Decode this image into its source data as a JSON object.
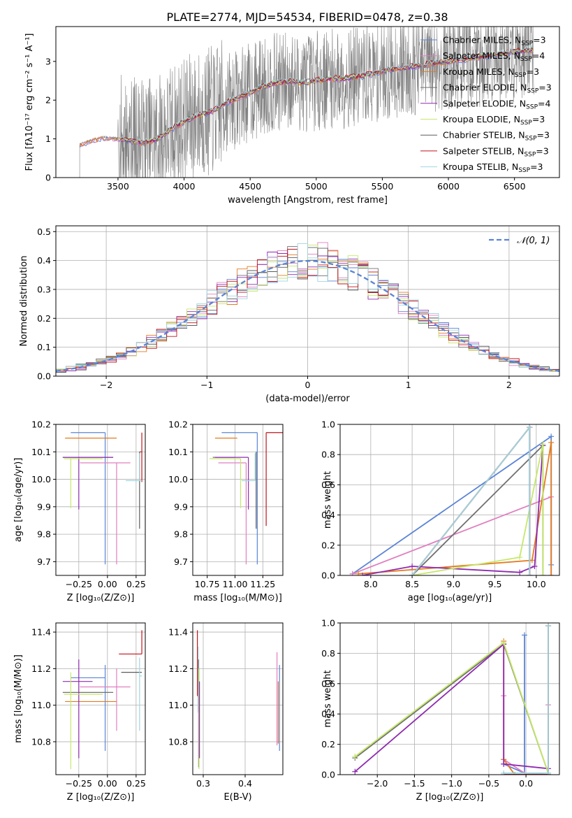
{
  "figure_title": "PLATE=2774, MJD=54534, FIBERID=0478, z=0.38",
  "colors": {
    "Chabrier MILES": "#5b84d6",
    "Salpeter MILES": "#e07fbf",
    "Kroupa MILES": "#e47b21",
    "Chabrier ELODIE": "#707070",
    "Salpeter ELODIE": "#8f2bb0",
    "Kroupa ELODIE": "#c5e86a",
    "Chabrier STELIB": "#5c5c5c",
    "Salpeter STELIB": "#c0151c",
    "Kroupa STELIB": "#9fd6e0",
    "normal": "#5b84d6"
  },
  "legend_spectrum": [
    {
      "label": "Chabrier MILES, N",
      "sub": "SSP",
      "suffix": "=3",
      "key": "Chabrier MILES"
    },
    {
      "label": "Salpeter MILES, N",
      "sub": "SSP",
      "suffix": "=4",
      "key": "Salpeter MILES"
    },
    {
      "label": "Kroupa MILES, N",
      "sub": "SSP",
      "suffix": "=3",
      "key": "Kroupa MILES"
    },
    {
      "label": "Chabrier ELODIE, N",
      "sub": "SSP",
      "suffix": "=3",
      "key": "Chabrier ELODIE"
    },
    {
      "label": "Salpeter ELODIE, N",
      "sub": "SSP",
      "suffix": "=4",
      "key": "Salpeter ELODIE"
    },
    {
      "label": "Kroupa ELODIE, N",
      "sub": "SSP",
      "suffix": "=3",
      "key": "Kroupa ELODIE"
    },
    {
      "label": "Chabrier STELIB, N",
      "sub": "SSP",
      "suffix": "=3",
      "key": "Chabrier STELIB"
    },
    {
      "label": "Salpeter STELIB, N",
      "sub": "SSP",
      "suffix": "=3",
      "key": "Salpeter STELIB"
    },
    {
      "label": "Kroupa STELIB, N",
      "sub": "SSP",
      "suffix": "=3",
      "key": "Kroupa STELIB"
    }
  ],
  "legend_hist": "𝒩(0, 1)",
  "chart_data": [
    {
      "id": "spectrum",
      "type": "line",
      "xlabel": "wavelength [Angstrom, rest frame]",
      "ylabel": "Flux [fλ10⁻¹⁷ erg cm⁻² s⁻¹ A⁻¹]",
      "xlim": [
        3030,
        6840
      ],
      "ylim": [
        0,
        3.9
      ],
      "xticks": [
        3500,
        4000,
        4500,
        5000,
        5500,
        6000,
        6500
      ],
      "yticks": [
        0,
        1,
        2,
        3
      ],
      "data_x": [
        3210,
        3280,
        3400,
        3500,
        3600,
        3700,
        3800,
        3900,
        4000,
        4100,
        4200,
        4300,
        4400,
        4500,
        4600,
        4700,
        4800,
        4900,
        5000,
        5100,
        5200,
        5300,
        5400,
        5500,
        5600,
        5700,
        5800,
        5900,
        6000,
        6100,
        6200,
        6300,
        6400,
        6500,
        6600,
        6650
      ],
      "data_y": [
        0.85,
        0.95,
        1.05,
        1.0,
        0.95,
        0.9,
        1.0,
        1.25,
        1.45,
        1.6,
        1.7,
        1.9,
        2.05,
        2.2,
        2.35,
        2.45,
        2.5,
        2.45,
        2.5,
        2.55,
        2.55,
        2.6,
        2.65,
        2.75,
        2.8,
        2.85,
        2.9,
        2.95,
        3.0,
        3.05,
        3.1,
        3.15,
        3.2,
        3.25,
        3.3,
        3.3
      ],
      "model_start_x": 3520,
      "noise_range": [
        3500,
        6650
      ]
    },
    {
      "id": "residual_hist",
      "type": "line",
      "xlabel": "(data-model)/error",
      "ylabel": "Normed distribution",
      "xlim": [
        -2.5,
        2.5
      ],
      "ylim": [
        0,
        0.52
      ],
      "xticks": [
        -2,
        -1,
        0,
        1,
        2
      ],
      "yticks": [
        0.0,
        0.1,
        0.2,
        0.3,
        0.4,
        0.5
      ],
      "bin_width": 0.1,
      "normal_mean": 0,
      "normal_sigma": 1
    },
    {
      "id": "age_vs_Z",
      "type": "scatter",
      "xlabel": "Z [log₁₀(Z/Z⊙)]",
      "ylabel": "age  [log₁₀(age/yr)]",
      "xlim": [
        -0.45,
        0.33
      ],
      "ylim": [
        9.65,
        10.2
      ],
      "xticks": [
        -0.25,
        0.0,
        0.25
      ],
      "yticks": [
        9.7,
        9.8,
        9.9,
        10.0,
        10.1,
        10.2
      ],
      "points": [
        {
          "key": "Chabrier MILES",
          "x": -0.02,
          "y": 10.17,
          "xerr": [
            0.3,
            0.0
          ],
          "yerr": [
            0.48,
            0.0
          ]
        },
        {
          "key": "Salpeter MILES",
          "x": 0.08,
          "y": 10.06,
          "xerr": [
            0.32,
            0.12
          ],
          "yerr": [
            0.37,
            0.0
          ]
        },
        {
          "key": "Kroupa MILES",
          "x": -0.12,
          "y": 10.15,
          "xerr": [
            0.25,
            0.2
          ],
          "yerr": [
            0.0,
            0.0
          ]
        },
        {
          "key": "Chabrier ELODIE",
          "x": -0.25,
          "y": 10.08,
          "xerr": [
            0.14,
            0.3
          ],
          "yerr": [
            0.0,
            0.0
          ]
        },
        {
          "key": "Salpeter ELODIE",
          "x": -0.25,
          "y": 10.08,
          "xerr": [
            0.14,
            0.3
          ],
          "yerr": [
            0.19,
            0.0
          ]
        },
        {
          "key": "Kroupa ELODIE",
          "x": -0.32,
          "y": 10.075,
          "xerr": [
            0.06,
            0.28
          ],
          "yerr": [
            0.18,
            0.0
          ]
        },
        {
          "key": "Chabrier STELIB",
          "x": 0.28,
          "y": 10.1,
          "xerr": [
            0.0,
            0.02
          ],
          "yerr": [
            0.28,
            0.0
          ]
        },
        {
          "key": "Salpeter STELIB",
          "x": 0.3,
          "y": 10.17,
          "xerr": [
            0.0,
            0.0
          ],
          "yerr": [
            0.18,
            0.0
          ]
        },
        {
          "key": "Kroupa STELIB",
          "x": 0.28,
          "y": 9.995,
          "xerr": [
            0.12,
            0.02
          ],
          "yerr": [
            0.0,
            0.1
          ]
        }
      ]
    },
    {
      "id": "age_vs_mass",
      "type": "scatter",
      "xlabel": "mass [log₁₀(M/M⊙)]",
      "ylabel": "",
      "xlim": [
        10.62,
        11.43
      ],
      "ylim": [
        9.65,
        10.2
      ],
      "xticks": [
        10.75,
        11.0,
        11.25
      ],
      "xticklabels": [
        "10.75",
        "11.00",
        "11.25"
      ],
      "yticks": [
        9.7,
        9.8,
        9.9,
        10.0,
        10.1,
        10.2
      ],
      "points": [
        {
          "key": "Chabrier MILES",
          "x": 11.2,
          "y": 10.17,
          "xerr": [
            0.32,
            0.0
          ],
          "yerr": [
            0.48,
            0.0
          ]
        },
        {
          "key": "Salpeter MILES",
          "x": 11.1,
          "y": 10.06,
          "xerr": [
            0.25,
            0.0
          ],
          "yerr": [
            0.37,
            0.0
          ]
        },
        {
          "key": "Kroupa MILES",
          "x": 11.02,
          "y": 10.15,
          "xerr": [
            0.2,
            0.0
          ],
          "yerr": [
            0.0,
            0.0
          ]
        },
        {
          "key": "Chabrier ELODIE",
          "x": 11.0,
          "y": 10.08,
          "xerr": [
            0.2,
            0.0
          ],
          "yerr": [
            0.0,
            0.0
          ]
        },
        {
          "key": "Salpeter ELODIE",
          "x": 11.12,
          "y": 10.08,
          "xerr": [
            0.3,
            0.0
          ],
          "yerr": [
            0.19,
            0.0
          ]
        },
        {
          "key": "Kroupa ELODIE",
          "x": 11.05,
          "y": 10.075,
          "xerr": [
            0.28,
            0.0
          ],
          "yerr": [
            0.18,
            0.0
          ]
        },
        {
          "key": "Chabrier STELIB",
          "x": 11.19,
          "y": 10.1,
          "xerr": [
            0.0,
            0.0
          ],
          "yerr": [
            0.28,
            0.0
          ]
        },
        {
          "key": "Salpeter STELIB",
          "x": 11.28,
          "y": 10.17,
          "xerr": [
            0.0,
            0.15
          ],
          "yerr": [
            0.34,
            0.0
          ]
        },
        {
          "key": "Kroupa STELIB",
          "x": 11.18,
          "y": 9.995,
          "xerr": [
            0.12,
            0.0
          ],
          "yerr": [
            0.0,
            0.1
          ]
        }
      ]
    },
    {
      "id": "weight_vs_age",
      "type": "line",
      "xlabel": "age  [log₁₀(age/yr)]",
      "ylabel": "mass weight",
      "xlim": [
        7.63,
        10.28
      ],
      "ylim": [
        0,
        1.0
      ],
      "xticks": [
        8.0,
        8.5,
        9.0,
        9.5,
        10.0
      ],
      "yticks": [
        0.0,
        0.2,
        0.4,
        0.6,
        0.8,
        1.0
      ],
      "series": [
        {
          "key": "Chabrier MILES",
          "x": [
            7.78,
            10.18,
            10.18
          ],
          "y": [
            0.01,
            0.92,
            0.07
          ]
        },
        {
          "key": "Salpeter MILES",
          "x": [
            7.78,
            10.18,
            10.18
          ],
          "y": [
            0.01,
            0.52,
            0.0
          ]
        },
        {
          "key": "Kroupa MILES",
          "x": [
            7.85,
            9.95,
            10.18,
            10.18
          ],
          "y": [
            0.01,
            0.1,
            0.88,
            0.0
          ]
        },
        {
          "key": "Chabrier ELODIE",
          "x": [
            8.5,
            10.08,
            10.08
          ],
          "y": [
            0.0,
            0.86,
            0.0
          ]
        },
        {
          "key": "Salpeter ELODIE",
          "x": [
            7.9,
            8.5,
            9.8,
            9.98,
            10.08
          ],
          "y": [
            0.0,
            0.06,
            0.02,
            0.06,
            0.86
          ]
        },
        {
          "key": "Kroupa ELODIE",
          "x": [
            8.5,
            9.8,
            10.08,
            10.08
          ],
          "y": [
            0.0,
            0.12,
            0.87,
            0.0
          ]
        },
        {
          "key": "Chabrier STELIB",
          "x": [
            8.5,
            9.92,
            9.92
          ],
          "y": [
            0.0,
            0.98,
            0.0
          ]
        },
        {
          "key": "Salpeter STELIB",
          "x": [
            8.5,
            9.92,
            9.92
          ],
          "y": [
            0.0,
            0.98,
            0.0
          ]
        },
        {
          "key": "Kroupa STELIB",
          "x": [
            8.5,
            9.92,
            9.92
          ],
          "y": [
            0.0,
            0.98,
            0.0
          ]
        }
      ]
    },
    {
      "id": "mass_vs_Z",
      "type": "scatter",
      "xlabel": "Z [log₁₀(Z/Z⊙)]",
      "ylabel": "mass [log₁₀(M/M⊙)]",
      "xlim": [
        -0.45,
        0.33
      ],
      "ylim": [
        10.62,
        11.45
      ],
      "xticks": [
        -0.25,
        0.0,
        0.25
      ],
      "yticks": [
        10.8,
        11.0,
        11.2,
        11.4
      ],
      "points": [
        {
          "key": "Chabrier MILES",
          "x": -0.02,
          "y": 11.15,
          "xerr": [
            0.3,
            0.0
          ],
          "yerr": [
            0.4,
            0.07
          ]
        },
        {
          "key": "Salpeter MILES",
          "x": 0.08,
          "y": 11.1,
          "xerr": [
            0.32,
            0.12
          ],
          "yerr": [
            0.24,
            0.1
          ]
        },
        {
          "key": "Kroupa MILES",
          "x": -0.12,
          "y": 11.02,
          "xerr": [
            0.25,
            0.2
          ],
          "yerr": [
            0.0,
            0.0
          ]
        },
        {
          "key": "Chabrier ELODIE",
          "x": -0.25,
          "y": 11.07,
          "xerr": [
            0.14,
            0.3
          ],
          "yerr": [
            0.0,
            0.0
          ]
        },
        {
          "key": "Salpeter ELODIE",
          "x": -0.25,
          "y": 11.13,
          "xerr": [
            0.14,
            0.12
          ],
          "yerr": [
            0.42,
            0.12
          ]
        },
        {
          "key": "Kroupa ELODIE",
          "x": -0.32,
          "y": 11.06,
          "xerr": [
            0.06,
            0.28
          ],
          "yerr": [
            0.41,
            0.12
          ]
        },
        {
          "key": "Chabrier STELIB",
          "x": 0.28,
          "y": 11.18,
          "xerr": [
            0.16,
            0.02
          ],
          "yerr": [
            0.0,
            0.0
          ]
        },
        {
          "key": "Salpeter STELIB",
          "x": 0.3,
          "y": 11.28,
          "xerr": [
            0.2,
            0.0
          ],
          "yerr": [
            0.0,
            0.13
          ]
        },
        {
          "key": "Kroupa STELIB",
          "x": 0.28,
          "y": 11.16,
          "xerr": [
            0.0,
            0.02
          ],
          "yerr": [
            0.3,
            0.1
          ]
        }
      ]
    },
    {
      "id": "mass_vs_ebv",
      "type": "scatter",
      "xlabel": "E(B-V)",
      "ylabel": "",
      "xlim": [
        0.275,
        0.49
      ],
      "ylim": [
        10.62,
        11.45
      ],
      "xticks": [
        0.3,
        0.4
      ],
      "yticks": [
        10.8,
        11.0,
        11.2,
        11.4
      ],
      "segments": [
        {
          "key": "Salpeter STELIB",
          "x": 0.286,
          "y0": 11.05,
          "y1": 11.41
        },
        {
          "key": "Kroupa STELIB",
          "x": 0.288,
          "y0": 10.96,
          "y1": 11.32
        },
        {
          "key": "Chabrier ELODIE",
          "x": 0.289,
          "y0": 10.66,
          "y1": 11.25
        },
        {
          "key": "Kroupa ELODIE",
          "x": 0.29,
          "y0": 10.65,
          "y1": 11.2
        },
        {
          "key": "Salpeter ELODIE",
          "x": 0.291,
          "y0": 10.71,
          "y1": 11.13
        },
        {
          "key": "Salpeter MILES",
          "x": 0.476,
          "y0": 10.78,
          "y1": 11.29
        },
        {
          "key": "Kroupa MILES",
          "x": 0.479,
          "y0": 10.79,
          "y1": 11.13
        },
        {
          "key": "Chabrier MILES",
          "x": 0.482,
          "y0": 10.75,
          "y1": 11.22
        }
      ]
    },
    {
      "id": "weight_vs_Z",
      "type": "line",
      "xlabel": "Z [log₁₀(Z/Z⊙)]",
      "ylabel": "mass weight",
      "xlim": [
        -2.5,
        0.45
      ],
      "ylim": [
        0,
        1.0
      ],
      "xticks": [
        -2.0,
        -1.5,
        -1.0,
        -0.5,
        0.0
      ],
      "yticks": [
        0.0,
        0.2,
        0.4,
        0.6,
        0.8,
        1.0
      ],
      "series": [
        {
          "key": "Chabrier MILES",
          "x": [
            -0.3,
            -0.02,
            -0.02
          ],
          "y": [
            0.07,
            0.01,
            0.92
          ]
        },
        {
          "key": "Salpeter MILES",
          "x": [
            -0.3,
            -0.3,
            -0.02,
            0.3,
            0.3
          ],
          "y": [
            0.52,
            0.1,
            0.01,
            0.0,
            0.46
          ]
        },
        {
          "key": "Kroupa MILES",
          "x": [
            -0.3,
            -0.3,
            -0.15,
            0.3
          ],
          "y": [
            0.88,
            0.1,
            0.0,
            0.0
          ]
        },
        {
          "key": "Chabrier ELODIE",
          "x": [
            -2.3,
            -0.3,
            0.3
          ],
          "y": [
            0.11,
            0.86,
            0.01
          ]
        },
        {
          "key": "Salpeter ELODIE",
          "x": [
            -2.3,
            -0.3,
            -0.3,
            0.3,
            0.3
          ],
          "y": [
            0.02,
            0.86,
            0.07,
            0.04,
            0.0
          ]
        },
        {
          "key": "Kroupa ELODIE",
          "x": [
            -2.3,
            -0.3,
            0.3
          ],
          "y": [
            0.12,
            0.87,
            0.01
          ]
        },
        {
          "key": "Chabrier STELIB",
          "x": [
            -0.3,
            0.3,
            0.3
          ],
          "y": [
            0.0,
            0.0,
            0.98
          ]
        },
        {
          "key": "Salpeter STELIB",
          "x": [
            -0.3,
            0.3,
            0.3
          ],
          "y": [
            0.0,
            0.0,
            0.98
          ]
        },
        {
          "key": "Kroupa STELIB",
          "x": [
            -0.3,
            0.3,
            0.3
          ],
          "y": [
            0.01,
            0.01,
            0.98
          ]
        }
      ]
    }
  ]
}
